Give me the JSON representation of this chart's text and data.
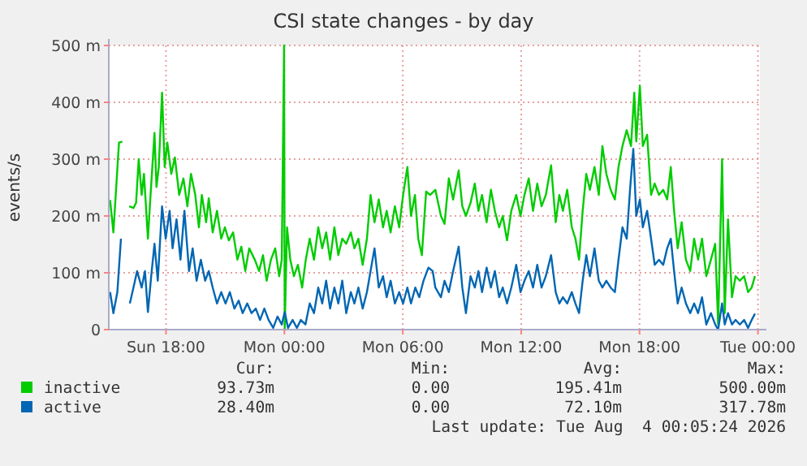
{
  "chart_data": {
    "type": "line",
    "title": "CSI state changes - by day",
    "ylabel": "events/s",
    "xlim": [
      "2026-08-02T15:06",
      "2026-08-04T00:06"
    ],
    "ylim": [
      0,
      500
    ],
    "xticks": [
      {
        "value": "2026-08-02T18:00",
        "label": "Sun 18:00"
      },
      {
        "value": "2026-08-03T00:00",
        "label": "Mon 00:00"
      },
      {
        "value": "2026-08-03T06:00",
        "label": "Mon 06:00"
      },
      {
        "value": "2026-08-03T12:00",
        "label": "Mon 12:00"
      },
      {
        "value": "2026-08-03T18:00",
        "label": "Mon 18:00"
      },
      {
        "value": "2026-08-04T00:00",
        "label": "Tue 00:00"
      }
    ],
    "yticks": [
      0,
      {
        "value": 100,
        "label": "100 m"
      },
      {
        "value": 200,
        "label": "200 m"
      },
      {
        "value": 300,
        "label": "300 m"
      },
      {
        "value": 400,
        "label": "400 m"
      },
      {
        "value": 500,
        "label": "500 m"
      }
    ],
    "grid": true,
    "legend": "bottom",
    "marker": "none",
    "line_style": "solid",
    "series": [
      {
        "name": "inactive",
        "color": "#00cc00",
        "x": [
          "2026-08-02T15:10",
          "2026-08-02T15:20",
          "2026-08-02T15:37",
          "2026-08-02T15:47",
          "2026-08-02T15:57",
          "2026-08-02T16:08",
          "2026-08-02T16:21",
          "2026-08-02T16:29",
          "2026-08-02T16:37",
          "2026-08-02T16:46",
          "2026-08-02T16:53",
          "2026-08-02T17:05",
          "2026-08-02T17:13",
          "2026-08-02T17:25",
          "2026-08-02T17:31",
          "2026-08-02T17:38",
          "2026-08-02T17:48",
          "2026-08-02T17:56",
          "2026-08-02T18:04",
          "2026-08-02T18:16",
          "2026-08-02T18:27",
          "2026-08-02T18:40",
          "2026-08-02T18:53",
          "2026-08-02T19:05",
          "2026-08-02T19:16",
          "2026-08-02T19:29",
          "2026-08-02T19:40",
          "2026-08-02T19:49",
          "2026-08-02T20:02",
          "2026-08-02T20:10",
          "2026-08-02T20:22",
          "2026-08-02T20:35",
          "2026-08-02T20:48",
          "2026-08-02T20:59",
          "2026-08-02T21:11",
          "2026-08-02T21:24",
          "2026-08-02T21:37",
          "2026-08-02T21:49",
          "2026-08-02T22:01",
          "2026-08-02T22:13",
          "2026-08-02T22:30",
          "2026-08-02T22:43",
          "2026-08-02T22:55",
          "2026-08-02T23:06",
          "2026-08-02T23:19",
          "2026-08-02T23:32",
          "2026-08-02T23:44",
          "2026-08-02T23:52",
          "2026-08-02T23:59",
          "2026-08-03T00:01",
          "2026-08-03T00:08",
          "2026-08-03T00:18",
          "2026-08-03T00:29",
          "2026-08-03T00:41",
          "2026-08-03T00:54",
          "2026-08-03T01:05",
          "2026-08-03T01:17",
          "2026-08-03T01:30",
          "2026-08-03T01:43",
          "2026-08-03T01:55",
          "2026-08-03T02:07",
          "2026-08-03T02:19",
          "2026-08-03T02:32",
          "2026-08-03T02:44",
          "2026-08-03T02:56",
          "2026-08-03T03:08",
          "2026-08-03T03:22",
          "2026-08-03T03:33",
          "2026-08-03T03:45",
          "2026-08-03T03:58",
          "2026-08-03T04:11",
          "2026-08-03T04:22",
          "2026-08-03T04:34",
          "2026-08-03T04:47",
          "2026-08-03T05:00",
          "2026-08-03T05:11",
          "2026-08-03T05:23",
          "2026-08-03T05:36",
          "2026-08-03T05:49",
          "2026-08-03T06:01",
          "2026-08-03T06:14",
          "2026-08-03T06:25",
          "2026-08-03T06:37",
          "2026-08-03T06:47",
          "2026-08-03T06:58",
          "2026-08-03T07:11",
          "2026-08-03T07:23",
          "2026-08-03T07:39",
          "2026-08-03T07:56",
          "2026-08-03T08:07",
          "2026-08-03T08:20",
          "2026-08-03T08:33",
          "2026-08-03T08:50",
          "2026-08-03T09:01",
          "2026-08-03T09:12",
          "2026-08-03T09:26",
          "2026-08-03T09:39",
          "2026-08-03T09:50",
          "2026-08-03T10:01",
          "2026-08-03T10:15",
          "2026-08-03T10:28",
          "2026-08-03T10:40",
          "2026-08-03T10:53",
          "2026-08-03T11:04",
          "2026-08-03T11:17",
          "2026-08-03T11:30",
          "2026-08-03T11:45",
          "2026-08-03T11:58",
          "2026-08-03T12:10",
          "2026-08-03T12:23",
          "2026-08-03T12:36",
          "2026-08-03T12:49",
          "2026-08-03T13:02",
          "2026-08-03T13:15",
          "2026-08-03T13:31",
          "2026-08-03T13:45",
          "2026-08-03T13:56",
          "2026-08-03T14:07",
          "2026-08-03T14:20",
          "2026-08-03T14:34",
          "2026-08-03T14:45",
          "2026-08-03T14:56",
          "2026-08-03T15:07",
          "2026-08-03T15:18",
          "2026-08-03T15:29",
          "2026-08-03T15:43",
          "2026-08-03T15:56",
          "2026-08-03T16:07",
          "2026-08-03T16:19",
          "2026-08-03T16:32",
          "2026-08-03T16:45",
          "2026-08-03T16:56",
          "2026-08-03T17:08",
          "2026-08-03T17:21",
          "2026-08-03T17:34",
          "2026-08-03T17:44",
          "2026-08-03T17:50",
          "2026-08-03T18:01",
          "2026-08-03T18:10",
          "2026-08-03T18:23",
          "2026-08-03T18:35",
          "2026-08-03T18:46",
          "2026-08-03T18:59",
          "2026-08-03T19:12",
          "2026-08-03T19:24",
          "2026-08-03T19:35",
          "2026-08-03T19:45",
          "2026-08-03T19:56",
          "2026-08-03T20:08",
          "2026-08-03T20:21",
          "2026-08-03T20:34",
          "2026-08-03T20:46",
          "2026-08-03T20:58",
          "2026-08-03T21:10",
          "2026-08-03T21:23",
          "2026-08-03T21:37",
          "2026-08-03T21:50",
          "2026-08-03T21:59",
          "2026-08-03T22:11",
          "2026-08-03T22:19",
          "2026-08-03T22:29",
          "2026-08-03T22:41",
          "2026-08-03T22:52",
          "2026-08-03T23:05",
          "2026-08-03T23:18",
          "2026-08-03T23:30",
          "2026-08-03T23:41",
          "2026-08-03T23:51"
        ],
        "values": [
          228,
          171,
          329,
          331,
          null,
          217,
          214,
          223,
          300,
          237,
          274,
          160,
          237,
          346,
          251,
          286,
          417,
          286,
          329,
          274,
          303,
          237,
          266,
          217,
          274,
          237,
          180,
          237,
          189,
          231,
          171,
          209,
          160,
          180,
          157,
          171,
          123,
          146,
          103,
          143,
          123,
          103,
          131,
          86,
          123,
          143,
          94,
          123,
          500,
          0,
          180,
          123,
          94,
          114,
          74,
          123,
          160,
          123,
          180,
          143,
          171,
          123,
          180,
          131,
          160,
          151,
          171,
          143,
          160,
          114,
          160,
          237,
          189,
          229,
          180,
          209,
          171,
          217,
          180,
          237,
          286,
          200,
          237,
          160,
          131,
          243,
          237,
          246,
          200,
          186,
          266,
          229,
          280,
          217,
          200,
          223,
          257,
          209,
          237,
          189,
          246,
          209,
          180,
          200,
          157,
          209,
          237,
          200,
          237,
          266,
          209,
          257,
          217,
          237,
          289,
          189,
          237,
          209,
          246,
          180,
          160,
          123,
          209,
          274,
          246,
          286,
          237,
          323,
          274,
          246,
          229,
          286,
          323,
          351,
          323,
          417,
          331,
          429,
          323,
          343,
          237,
          257,
          237,
          246,
          229,
          286,
          209,
          143,
          189,
          123,
          103,
          160,
          123,
          160,
          94,
          123,
          151,
          9,
          300,
          29,
          194,
          57,
          94,
          86,
          94,
          66,
          74,
          94
        ]
      },
      {
        "name": "active",
        "color": "#0066b3",
        "x": [
          "2026-08-02T15:10",
          "2026-08-02T15:20",
          "2026-08-02T15:32",
          "2026-08-02T15:43",
          "2026-08-02T15:57",
          "2026-08-02T16:10",
          "2026-08-02T16:21",
          "2026-08-02T16:32",
          "2026-08-02T16:46",
          "2026-08-02T16:56",
          "2026-08-02T17:05",
          "2026-08-02T17:15",
          "2026-08-02T17:25",
          "2026-08-02T17:35",
          "2026-08-02T17:48",
          "2026-08-02T17:59",
          "2026-08-02T18:11",
          "2026-08-02T18:20",
          "2026-08-02T18:32",
          "2026-08-02T18:44",
          "2026-08-02T18:56",
          "2026-08-02T19:10",
          "2026-08-02T19:21",
          "2026-08-02T19:33",
          "2026-08-02T19:46",
          "2026-08-02T19:59",
          "2026-08-02T20:10",
          "2026-08-02T20:22",
          "2026-08-02T20:35",
          "2026-08-02T20:48",
          "2026-08-02T21:01",
          "2026-08-02T21:14",
          "2026-08-02T21:28",
          "2026-08-02T21:41",
          "2026-08-02T21:53",
          "2026-08-02T22:07",
          "2026-08-02T22:20",
          "2026-08-02T22:33",
          "2026-08-02T22:46",
          "2026-08-02T22:59",
          "2026-08-02T23:12",
          "2026-08-02T23:26",
          "2026-08-02T23:39",
          "2026-08-02T23:52",
          "2026-08-03T00:01",
          "2026-08-03T00:11",
          "2026-08-03T00:25",
          "2026-08-03T00:38",
          "2026-08-03T00:50",
          "2026-08-03T01:04",
          "2026-08-03T01:17",
          "2026-08-03T01:30",
          "2026-08-03T01:43",
          "2026-08-03T01:55",
          "2026-08-03T02:07",
          "2026-08-03T02:19",
          "2026-08-03T02:32",
          "2026-08-03T02:44",
          "2026-08-03T02:56",
          "2026-08-03T03:08",
          "2026-08-03T03:22",
          "2026-08-03T03:33",
          "2026-08-03T03:45",
          "2026-08-03T03:58",
          "2026-08-03T04:11",
          "2026-08-03T04:22",
          "2026-08-03T04:34",
          "2026-08-03T04:47",
          "2026-08-03T05:00",
          "2026-08-03T05:11",
          "2026-08-03T05:23",
          "2026-08-03T05:36",
          "2026-08-03T05:49",
          "2026-08-03T06:01",
          "2026-08-03T06:14",
          "2026-08-03T06:25",
          "2026-08-03T06:38",
          "2026-08-03T06:50",
          "2026-08-03T07:03",
          "2026-08-03T07:18",
          "2026-08-03T07:31",
          "2026-08-03T07:39",
          "2026-08-03T07:56",
          "2026-08-03T08:07",
          "2026-08-03T08:20",
          "2026-08-03T08:33",
          "2026-08-03T08:50",
          "2026-08-03T09:01",
          "2026-08-03T09:12",
          "2026-08-03T09:26",
          "2026-08-03T09:39",
          "2026-08-03T09:50",
          "2026-08-03T10:01",
          "2026-08-03T10:15",
          "2026-08-03T10:28",
          "2026-08-03T10:40",
          "2026-08-03T10:53",
          "2026-08-03T11:04",
          "2026-08-03T11:17",
          "2026-08-03T11:30",
          "2026-08-03T11:45",
          "2026-08-03T11:58",
          "2026-08-03T12:10",
          "2026-08-03T12:23",
          "2026-08-03T12:36",
          "2026-08-03T12:49",
          "2026-08-03T13:02",
          "2026-08-03T13:15",
          "2026-08-03T13:31",
          "2026-08-03T13:45",
          "2026-08-03T13:56",
          "2026-08-03T14:07",
          "2026-08-03T14:20",
          "2026-08-03T14:34",
          "2026-08-03T14:45",
          "2026-08-03T14:56",
          "2026-08-03T15:07",
          "2026-08-03T15:18",
          "2026-08-03T15:29",
          "2026-08-03T15:43",
          "2026-08-03T15:56",
          "2026-08-03T16:07",
          "2026-08-03T16:19",
          "2026-08-03T16:32",
          "2026-08-03T16:45",
          "2026-08-03T16:56",
          "2026-08-03T17:08",
          "2026-08-03T17:21",
          "2026-08-03T17:31",
          "2026-08-03T17:41",
          "2026-08-03T17:50",
          "2026-08-03T18:01",
          "2026-08-03T18:10",
          "2026-08-03T18:23",
          "2026-08-03T18:35",
          "2026-08-03T18:46",
          "2026-08-03T18:59",
          "2026-08-03T19:12",
          "2026-08-03T19:24",
          "2026-08-03T19:35",
          "2026-08-03T19:45",
          "2026-08-03T19:56",
          "2026-08-03T20:08",
          "2026-08-03T20:21",
          "2026-08-03T20:34",
          "2026-08-03T20:46",
          "2026-08-03T20:58",
          "2026-08-03T21:10",
          "2026-08-03T21:23",
          "2026-08-03T21:37",
          "2026-08-03T21:50",
          "2026-08-03T21:59",
          "2026-08-03T22:11",
          "2026-08-03T22:19",
          "2026-08-03T22:29",
          "2026-08-03T22:41",
          "2026-08-03T22:52",
          "2026-08-03T23:05",
          "2026-08-03T23:18",
          "2026-08-03T23:30",
          "2026-08-03T23:41",
          "2026-08-03T23:51"
        ],
        "values": [
          66,
          29,
          66,
          160,
          null,
          46,
          74,
          103,
          74,
          103,
          31,
          94,
          151,
          86,
          217,
          160,
          209,
          143,
          194,
          123,
          209,
          103,
          143,
          86,
          123,
          86,
          103,
          74,
          46,
          66,
          46,
          66,
          37,
          51,
          29,
          46,
          29,
          37,
          17,
          37,
          17,
          3,
          23,
          9,
          31,
          3,
          17,
          3,
          17,
          9,
          46,
          29,
          74,
          46,
          86,
          37,
          74,
          46,
          86,
          29,
          66,
          46,
          74,
          37,
          66,
          103,
          143,
          74,
          94,
          57,
          86,
          46,
          66,
          46,
          74,
          46,
          74,
          57,
          86,
          109,
          103,
          74,
          57,
          86,
          66,
          103,
          146,
          74,
          29,
          94,
          74,
          103,
          66,
          109,
          74,
          103,
          57,
          74,
          46,
          74,
          114,
          66,
          86,
          103,
          74,
          114,
          74,
          94,
          131,
          66,
          46,
          57,
          46,
          66,
          46,
          29,
          86,
          131,
          94,
          143,
          86,
          74,
          86,
          74,
          66,
          123,
          180,
          160,
          246,
          318,
          200,
          229,
          180,
          209,
          160,
          114,
          123,
          114,
          143,
          160,
          103,
          46,
          74,
          46,
          29,
          46,
          29,
          57,
          9,
          29,
          9,
          0,
          46,
          9,
          29,
          9,
          17,
          9,
          17,
          3,
          17,
          28
        ]
      }
    ],
    "annotations": [
      "Cur:",
      "Min:",
      "Avg:",
      "Max:",
      "93.73m",
      "0.00",
      "195.41m",
      "500.00m",
      "28.40m",
      "0.00",
      "72.10m",
      "317.78m",
      "Last update: Tue Aug  4 00:05:24 2026"
    ]
  }
}
